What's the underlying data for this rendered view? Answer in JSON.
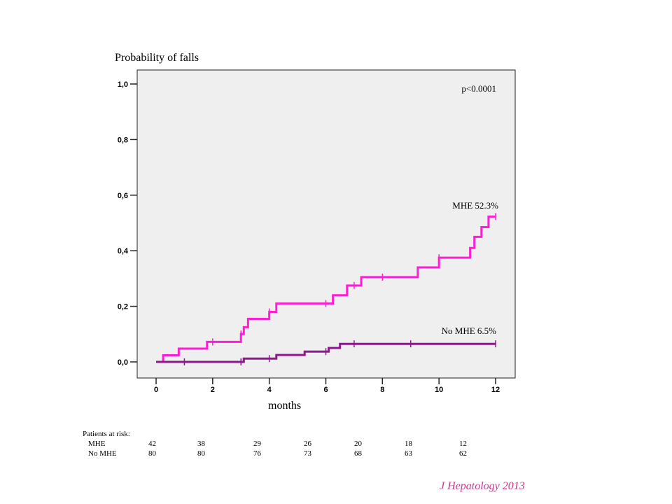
{
  "chart_data": {
    "type": "line",
    "title": "",
    "ylabel": "Probability of falls",
    "xlabel": "months",
    "xlim": [
      0,
      12
    ],
    "ylim": [
      0,
      1
    ],
    "x_ticks": [
      0,
      2,
      4,
      6,
      8,
      10,
      12
    ],
    "y_ticks": [
      "0,0",
      "0,2",
      "0,4",
      "0,6",
      "0,8",
      "1,0"
    ],
    "y_tick_values": [
      0,
      0.2,
      0.4,
      0.6,
      0.8,
      1.0
    ],
    "annotation": "p<0.0001",
    "series": [
      {
        "name": "MHE 52.3%",
        "color": "#ff1fd2",
        "steps": [
          [
            0,
            0
          ],
          [
            0.25,
            0.024
          ],
          [
            0.8,
            0.048
          ],
          [
            1.8,
            0.072
          ],
          [
            3.0,
            0.1
          ],
          [
            3.1,
            0.125
          ],
          [
            3.25,
            0.155
          ],
          [
            4.0,
            0.18
          ],
          [
            4.25,
            0.21
          ],
          [
            6.25,
            0.24
          ],
          [
            6.75,
            0.275
          ],
          [
            7.25,
            0.305
          ],
          [
            9.25,
            0.34
          ],
          [
            10.0,
            0.375
          ],
          [
            11.1,
            0.41
          ],
          [
            11.25,
            0.45
          ],
          [
            11.5,
            0.485
          ],
          [
            11.75,
            0.523
          ],
          [
            12.0,
            0.523
          ]
        ],
        "censored": [
          [
            2.0,
            0.072
          ],
          [
            3.0,
            0.1
          ],
          [
            4.0,
            0.18
          ],
          [
            6.0,
            0.21
          ],
          [
            7.0,
            0.275
          ],
          [
            8.0,
            0.305
          ],
          [
            10.0,
            0.375
          ],
          [
            12.0,
            0.523
          ]
        ]
      },
      {
        "name": "No MHE 6.5%",
        "color": "#8b1a8b",
        "steps": [
          [
            0,
            0
          ],
          [
            3.1,
            0.012
          ],
          [
            4.25,
            0.025
          ],
          [
            5.25,
            0.037
          ],
          [
            6.1,
            0.05
          ],
          [
            6.5,
            0.065
          ],
          [
            12.0,
            0.065
          ]
        ],
        "censored": [
          [
            1.0,
            0
          ],
          [
            3.0,
            0
          ],
          [
            4.0,
            0.012
          ],
          [
            6.0,
            0.037
          ],
          [
            7.0,
            0.065
          ],
          [
            9.0,
            0.065
          ],
          [
            12.0,
            0.065
          ]
        ]
      }
    ]
  },
  "at_risk": {
    "title": "Patients at risk:",
    "rows": [
      {
        "label": "MHE",
        "values": [
          "42",
          "38",
          "29",
          "26",
          "20",
          "18",
          "12"
        ]
      },
      {
        "label": "No MHE",
        "values": [
          "80",
          "80",
          "76",
          "73",
          "68",
          "63",
          "62"
        ]
      }
    ]
  },
  "citation": "J Hepatology 2013"
}
